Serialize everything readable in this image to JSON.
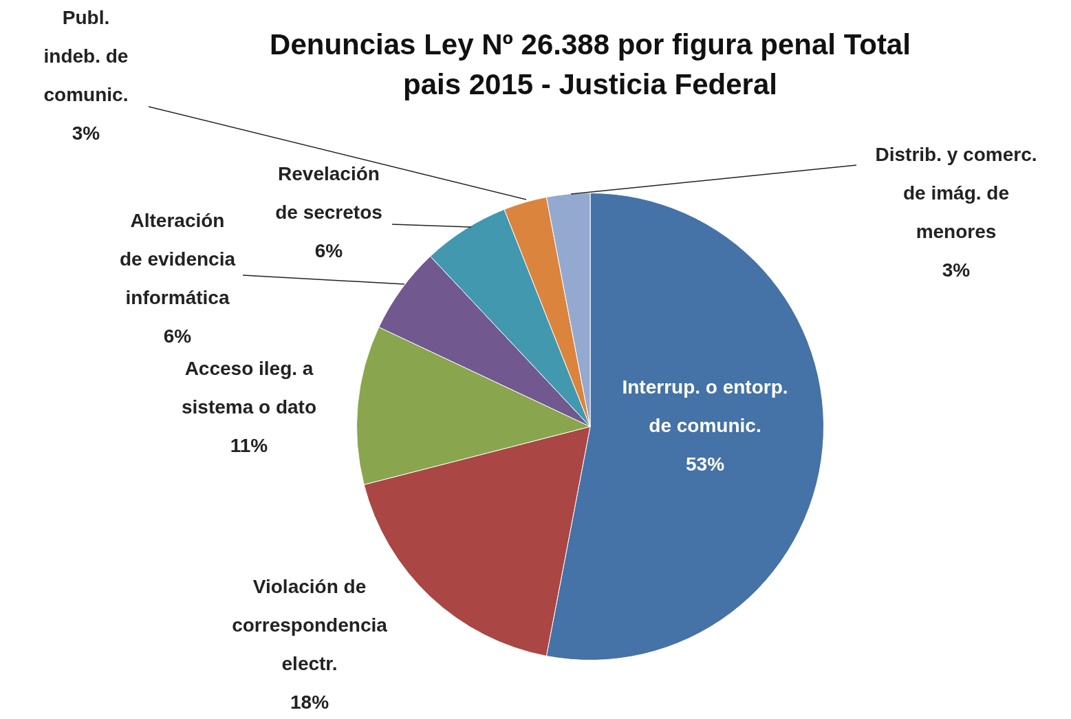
{
  "chart_data": {
    "type": "pie",
    "title": "Denuncias Ley Nº 26.388 por figura penal Total pais 2015 - Justicia Federal",
    "categories": [
      "Interrup. o entorp. de comunic.",
      "Violación de correspondencia electr.",
      "Acceso ileg. a sistema o dato",
      "Alteración de evidencia informática",
      "Revelación de secretos",
      "Publ. indeb. de comunic.",
      "Distrib. y comerc. de imág. de menores"
    ],
    "values": [
      53,
      18,
      11,
      6,
      6,
      3,
      3
    ],
    "colors": [
      "#4572a7",
      "#aa4643",
      "#89a54e",
      "#71588f",
      "#4198af",
      "#db843d",
      "#93a9cf"
    ],
    "value_labels": [
      "53%",
      "18%",
      "11%",
      "6%",
      "6%",
      "3%",
      "3%"
    ]
  }
}
